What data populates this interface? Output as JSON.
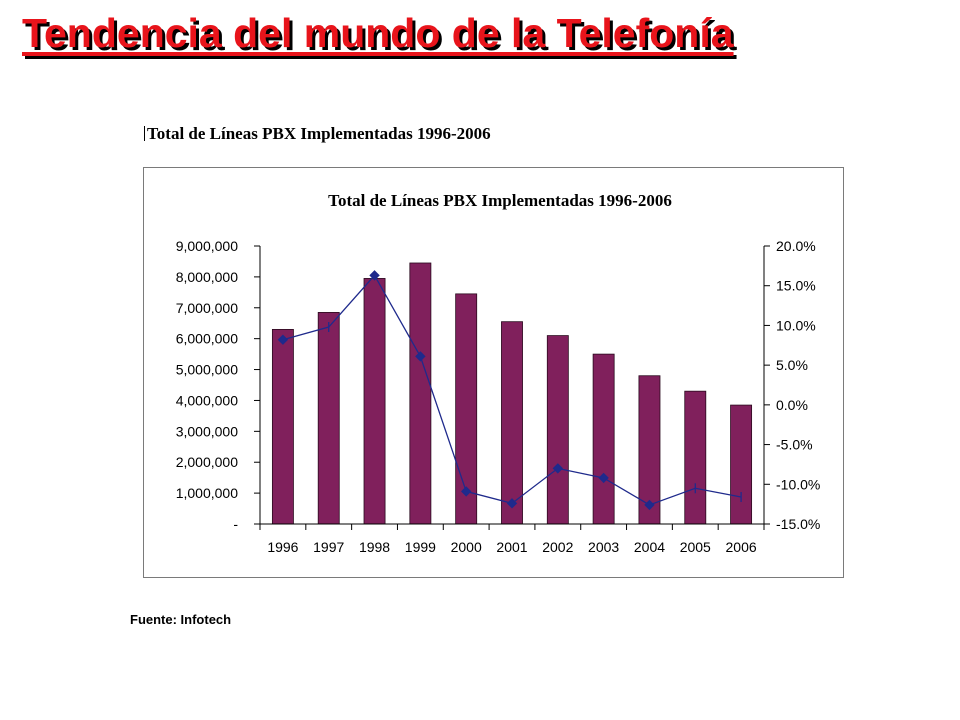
{
  "slide": {
    "title": "Tendencia del mundo de la Telefonía",
    "caption": "Total de Líneas PBX Implementadas 1996-2006",
    "source": "Fuente: Infotech"
  },
  "chart_data": {
    "type": "bar",
    "title": "Total de Líneas PBX Implementadas 1996-2006",
    "categories": [
      "1996",
      "1997",
      "1998",
      "1999",
      "2000",
      "2001",
      "2002",
      "2003",
      "2004",
      "2005",
      "2006"
    ],
    "bar_color": "#80205c",
    "line_color": "#1f2a8c",
    "series": [
      {
        "type": "bar",
        "axis": "left",
        "values": [
          6300000,
          6850000,
          7950000,
          8450000,
          7450000,
          6550000,
          6100000,
          5500000,
          4800000,
          4300000,
          3850000
        ]
      },
      {
        "type": "line",
        "axis": "right",
        "values": [
          8.2,
          9.8,
          16.3,
          6.1,
          -10.9,
          -12.4,
          -8.0,
          -9.2,
          -12.6,
          -10.5,
          -11.6
        ]
      }
    ],
    "y_left": {
      "ylim": [
        0,
        9000000
      ],
      "ticks": [
        0,
        1000000,
        2000000,
        3000000,
        4000000,
        5000000,
        6000000,
        7000000,
        8000000,
        9000000
      ],
      "tick_labels": [
        "-",
        "1,000,000",
        "2,000,000",
        "3,000,000",
        "4,000,000",
        "5,000,000",
        "6,000,000",
        "7,000,000",
        "8,000,000",
        "9,000,000"
      ]
    },
    "y_right": {
      "ylim": [
        -15,
        20
      ],
      "ticks": [
        -15,
        -10,
        -5,
        0,
        5,
        10,
        15,
        20
      ],
      "tick_labels": [
        "-15.0%",
        "-10.0%",
        "-5.0%",
        "0.0%",
        "5.0%",
        "10.0%",
        "15.0%",
        "20.0%"
      ]
    },
    "grid": false,
    "legend": "none"
  }
}
